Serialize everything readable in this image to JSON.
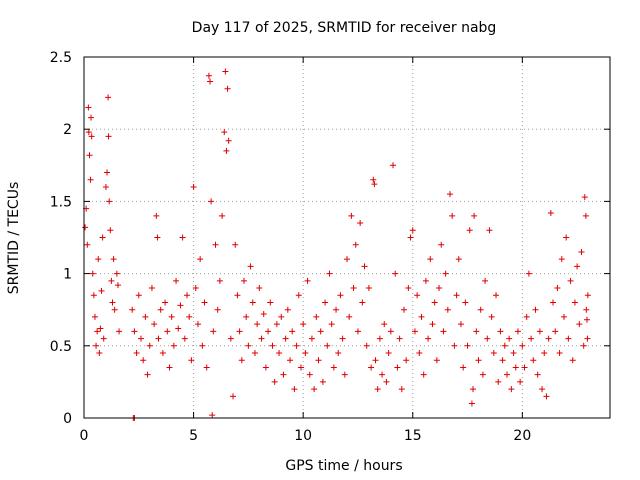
{
  "chart_data": {
    "type": "scatter",
    "title": "Day 117 of 2025, SRMTID for receiver nabg",
    "xlabel": "GPS time / hours",
    "ylabel": "SRMTID / TECUs",
    "xlim": [
      0,
      24
    ],
    "ylim": [
      0,
      2.5
    ],
    "xticks": [
      0,
      5,
      10,
      15,
      20
    ],
    "xtick_labels": [
      "0",
      "5",
      "10",
      "15",
      "20"
    ],
    "yticks": [
      0,
      0.5,
      1,
      1.5,
      2,
      2.5
    ],
    "ytick_labels": [
      "0",
      "0.5",
      "1",
      "1.5",
      "2",
      "2.5"
    ],
    "grid": true,
    "marker": "+",
    "series": [
      {
        "name": "nabg",
        "color": "#e00000",
        "points": [
          [
            0.05,
            1.32
          ],
          [
            0.1,
            1.45
          ],
          [
            0.15,
            1.2
          ],
          [
            0.2,
            2.15
          ],
          [
            0.22,
            1.98
          ],
          [
            0.25,
            1.82
          ],
          [
            0.3,
            1.65
          ],
          [
            0.32,
            2.08
          ],
          [
            0.35,
            1.95
          ],
          [
            0.4,
            1.0
          ],
          [
            0.45,
            0.85
          ],
          [
            0.5,
            0.7
          ],
          [
            0.55,
            0.5
          ],
          [
            0.6,
            0.6
          ],
          [
            0.65,
            1.1
          ],
          [
            0.7,
            0.45
          ],
          [
            0.75,
            0.62
          ],
          [
            0.8,
            0.88
          ],
          [
            0.85,
            1.25
          ],
          [
            0.9,
            0.55
          ],
          [
            1.0,
            1.6
          ],
          [
            1.05,
            1.7
          ],
          [
            1.1,
            2.22
          ],
          [
            1.12,
            1.95
          ],
          [
            1.15,
            1.5
          ],
          [
            1.2,
            1.3
          ],
          [
            1.25,
            0.95
          ],
          [
            1.3,
            0.8
          ],
          [
            1.35,
            1.1
          ],
          [
            1.4,
            0.75
          ],
          [
            1.5,
            1.0
          ],
          [
            1.55,
            0.92
          ],
          [
            1.6,
            0.6
          ],
          [
            2.25,
            0.0
          ],
          [
            2.3,
            0.0
          ],
          [
            2.2,
            0.75
          ],
          [
            2.3,
            0.6
          ],
          [
            2.4,
            0.45
          ],
          [
            2.5,
            0.85
          ],
          [
            2.6,
            0.55
          ],
          [
            2.7,
            0.4
          ],
          [
            2.8,
            0.7
          ],
          [
            2.9,
            0.3
          ],
          [
            3.0,
            0.5
          ],
          [
            3.1,
            0.9
          ],
          [
            3.2,
            0.65
          ],
          [
            3.3,
            1.4
          ],
          [
            3.35,
            1.25
          ],
          [
            3.4,
            0.55
          ],
          [
            3.5,
            0.75
          ],
          [
            3.6,
            0.45
          ],
          [
            3.7,
            0.8
          ],
          [
            3.8,
            0.6
          ],
          [
            3.9,
            0.35
          ],
          [
            4.0,
            0.7
          ],
          [
            4.1,
            0.5
          ],
          [
            4.2,
            0.95
          ],
          [
            4.3,
            0.62
          ],
          [
            4.4,
            0.78
          ],
          [
            4.5,
            1.25
          ],
          [
            4.6,
            0.55
          ],
          [
            4.7,
            0.85
          ],
          [
            4.8,
            0.7
          ],
          [
            4.9,
            0.4
          ],
          [
            5.0,
            1.6
          ],
          [
            5.1,
            0.9
          ],
          [
            5.2,
            0.65
          ],
          [
            5.3,
            1.1
          ],
          [
            5.4,
            0.5
          ],
          [
            5.5,
            0.8
          ],
          [
            5.6,
            0.35
          ],
          [
            5.7,
            2.37
          ],
          [
            5.75,
            2.33
          ],
          [
            5.8,
            1.5
          ],
          [
            5.85,
            0.02
          ],
          [
            5.9,
            0.6
          ],
          [
            6.0,
            1.2
          ],
          [
            6.1,
            0.75
          ],
          [
            6.2,
            0.95
          ],
          [
            6.3,
            1.4
          ],
          [
            6.4,
            1.98
          ],
          [
            6.45,
            2.4
          ],
          [
            6.5,
            1.85
          ],
          [
            6.55,
            2.28
          ],
          [
            6.6,
            1.92
          ],
          [
            6.7,
            0.55
          ],
          [
            6.8,
            0.15
          ],
          [
            6.9,
            1.2
          ],
          [
            7.0,
            0.85
          ],
          [
            7.1,
            0.6
          ],
          [
            7.2,
            0.4
          ],
          [
            7.3,
            0.95
          ],
          [
            7.4,
            0.7
          ],
          [
            7.5,
            0.5
          ],
          [
            7.6,
            1.05
          ],
          [
            7.7,
            0.8
          ],
          [
            7.8,
            0.45
          ],
          [
            7.9,
            0.65
          ],
          [
            8.0,
            0.9
          ],
          [
            8.1,
            0.55
          ],
          [
            8.2,
            0.72
          ],
          [
            8.3,
            0.35
          ],
          [
            8.4,
            0.6
          ],
          [
            8.5,
            0.8
          ],
          [
            8.6,
            0.5
          ],
          [
            8.7,
            0.25
          ],
          [
            8.8,
            0.65
          ],
          [
            8.9,
            0.45
          ],
          [
            9.0,
            0.7
          ],
          [
            9.1,
            0.3
          ],
          [
            9.2,
            0.55
          ],
          [
            9.3,
            0.75
          ],
          [
            9.4,
            0.4
          ],
          [
            9.5,
            0.6
          ],
          [
            9.6,
            0.2
          ],
          [
            9.7,
            0.5
          ],
          [
            9.8,
            0.85
          ],
          [
            9.9,
            0.35
          ],
          [
            10.0,
            0.65
          ],
          [
            10.1,
            0.45
          ],
          [
            10.2,
            0.95
          ],
          [
            10.3,
            0.3
          ],
          [
            10.4,
            0.55
          ],
          [
            10.5,
            0.2
          ],
          [
            10.6,
            0.7
          ],
          [
            10.7,
            0.4
          ],
          [
            10.8,
            0.6
          ],
          [
            10.9,
            0.25
          ],
          [
            11.0,
            0.8
          ],
          [
            11.1,
            0.5
          ],
          [
            11.2,
            1.0
          ],
          [
            11.3,
            0.65
          ],
          [
            11.4,
            0.35
          ],
          [
            11.5,
            0.75
          ],
          [
            11.6,
            0.45
          ],
          [
            11.7,
            0.85
          ],
          [
            11.8,
            0.55
          ],
          [
            11.9,
            0.3
          ],
          [
            12.0,
            1.1
          ],
          [
            12.1,
            0.7
          ],
          [
            12.2,
            1.4
          ],
          [
            12.3,
            0.9
          ],
          [
            12.4,
            1.2
          ],
          [
            12.5,
            0.6
          ],
          [
            12.6,
            1.35
          ],
          [
            12.7,
            0.8
          ],
          [
            12.8,
            1.05
          ],
          [
            12.9,
            0.5
          ],
          [
            13.0,
            0.9
          ],
          [
            13.1,
            0.35
          ],
          [
            13.2,
            1.65
          ],
          [
            13.25,
            1.62
          ],
          [
            13.3,
            0.4
          ],
          [
            13.4,
            0.2
          ],
          [
            13.5,
            0.55
          ],
          [
            13.6,
            0.3
          ],
          [
            13.7,
            0.65
          ],
          [
            13.8,
            0.25
          ],
          [
            13.9,
            0.45
          ],
          [
            14.0,
            0.6
          ],
          [
            14.1,
            1.75
          ],
          [
            14.2,
            1.0
          ],
          [
            14.3,
            0.35
          ],
          [
            14.4,
            0.55
          ],
          [
            14.5,
            0.2
          ],
          [
            14.6,
            0.75
          ],
          [
            14.7,
            0.4
          ],
          [
            14.8,
            0.9
          ],
          [
            14.9,
            1.25
          ],
          [
            15.0,
            1.3
          ],
          [
            15.1,
            0.6
          ],
          [
            15.2,
            0.85
          ],
          [
            15.3,
            0.45
          ],
          [
            15.4,
            0.7
          ],
          [
            15.5,
            0.3
          ],
          [
            15.6,
            0.95
          ],
          [
            15.7,
            0.55
          ],
          [
            15.8,
            1.1
          ],
          [
            15.9,
            0.65
          ],
          [
            16.0,
            0.8
          ],
          [
            16.1,
            0.4
          ],
          [
            16.2,
            0.9
          ],
          [
            16.3,
            1.2
          ],
          [
            16.4,
            0.6
          ],
          [
            16.5,
            1.0
          ],
          [
            16.6,
            0.75
          ],
          [
            16.7,
            1.55
          ],
          [
            16.8,
            1.4
          ],
          [
            16.9,
            0.5
          ],
          [
            17.0,
            0.85
          ],
          [
            17.1,
            1.1
          ],
          [
            17.2,
            0.65
          ],
          [
            17.3,
            0.35
          ],
          [
            17.4,
            0.8
          ],
          [
            17.5,
            0.5
          ],
          [
            17.6,
            1.3
          ],
          [
            17.7,
            0.1
          ],
          [
            17.75,
            0.2
          ],
          [
            17.8,
            1.4
          ],
          [
            17.9,
            0.6
          ],
          [
            18.0,
            0.4
          ],
          [
            18.1,
            0.75
          ],
          [
            18.2,
            0.3
          ],
          [
            18.3,
            0.95
          ],
          [
            18.4,
            0.55
          ],
          [
            18.5,
            1.3
          ],
          [
            18.6,
            0.7
          ],
          [
            18.7,
            0.45
          ],
          [
            18.8,
            0.85
          ],
          [
            18.9,
            0.25
          ],
          [
            19.0,
            0.6
          ],
          [
            19.1,
            0.4
          ],
          [
            19.2,
            0.5
          ],
          [
            19.3,
            0.3
          ],
          [
            19.4,
            0.55
          ],
          [
            19.5,
            0.2
          ],
          [
            19.6,
            0.45
          ],
          [
            19.7,
            0.35
          ],
          [
            19.8,
            0.6
          ],
          [
            19.9,
            0.25
          ],
          [
            20.0,
            0.5
          ],
          [
            20.1,
            0.35
          ],
          [
            20.2,
            0.7
          ],
          [
            20.3,
            1.0
          ],
          [
            20.4,
            0.55
          ],
          [
            20.5,
            0.4
          ],
          [
            20.6,
            0.75
          ],
          [
            20.7,
            0.3
          ],
          [
            20.8,
            0.6
          ],
          [
            20.9,
            0.2
          ],
          [
            21.0,
            0.45
          ],
          [
            21.1,
            0.15
          ],
          [
            21.2,
            0.55
          ],
          [
            21.3,
            1.42
          ],
          [
            21.4,
            0.8
          ],
          [
            21.5,
            0.6
          ],
          [
            21.6,
            0.9
          ],
          [
            21.7,
            0.45
          ],
          [
            21.8,
            1.1
          ],
          [
            21.9,
            0.7
          ],
          [
            22.0,
            1.25
          ],
          [
            22.1,
            0.55
          ],
          [
            22.2,
            0.95
          ],
          [
            22.3,
            0.4
          ],
          [
            22.4,
            0.8
          ],
          [
            22.5,
            1.05
          ],
          [
            22.6,
            0.65
          ],
          [
            22.7,
            1.15
          ],
          [
            22.8,
            0.5
          ],
          [
            22.85,
            1.53
          ],
          [
            22.9,
            1.4
          ],
          [
            22.92,
            0.75
          ],
          [
            22.95,
            0.68
          ],
          [
            22.97,
            0.55
          ],
          [
            22.99,
            0.85
          ]
        ]
      }
    ]
  }
}
